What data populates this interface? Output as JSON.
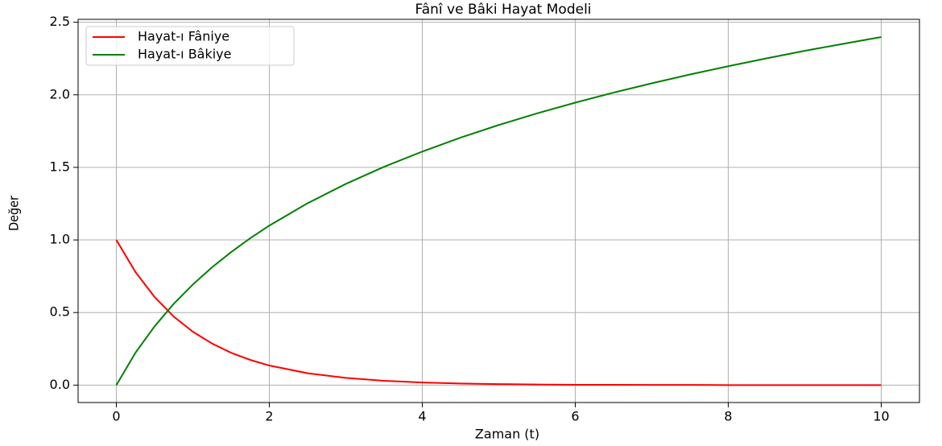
{
  "chart_data": {
    "type": "line",
    "title": "Fânî ve Bâki Hayat Modeli",
    "x_label": "Zaman (t)",
    "y_label": "Değer",
    "x": [
      0,
      0.25,
      0.5,
      0.75,
      1,
      1.25,
      1.5,
      1.75,
      2,
      2.5,
      3,
      3.5,
      4,
      4.5,
      5,
      5.5,
      6,
      6.5,
      7,
      7.5,
      8,
      8.5,
      9,
      9.5,
      10
    ],
    "series": [
      {
        "name": "Hayat-ı Fâniye",
        "color": "#ff0000",
        "values": [
          1,
          0.779,
          0.607,
          0.472,
          0.368,
          0.287,
          0.223,
          0.174,
          0.135,
          0.082,
          0.05,
          0.03,
          0.018,
          0.011,
          0.007,
          0.004,
          0.002,
          0.002,
          0.001,
          0.001,
          0,
          0,
          0,
          0,
          0
        ]
      },
      {
        "name": "Hayat-ı Bâkiye",
        "color": "#008000",
        "values": [
          0,
          0.223,
          0.405,
          0.56,
          0.693,
          0.811,
          0.916,
          1.012,
          1.099,
          1.253,
          1.386,
          1.504,
          1.609,
          1.705,
          1.792,
          1.872,
          1.946,
          2.015,
          2.079,
          2.14,
          2.197,
          2.251,
          2.303,
          2.351,
          2.398
        ]
      }
    ],
    "xlim": [
      -0.5,
      10.5
    ],
    "xticks": [
      0,
      2,
      4,
      6,
      8,
      10
    ],
    "ylim": [
      -0.12,
      2.52
    ],
    "yticks": [
      {
        "value": 0,
        "label": "0.0"
      },
      {
        "value": 0.5,
        "label": "0.5"
      },
      {
        "value": 1,
        "label": "1.0"
      },
      {
        "value": 1.5,
        "label": "1.5"
      },
      {
        "value": 2,
        "label": "2.0"
      },
      {
        "value": 2.5,
        "label": "2.5"
      }
    ],
    "grid": true,
    "legend": "upper-left"
  }
}
